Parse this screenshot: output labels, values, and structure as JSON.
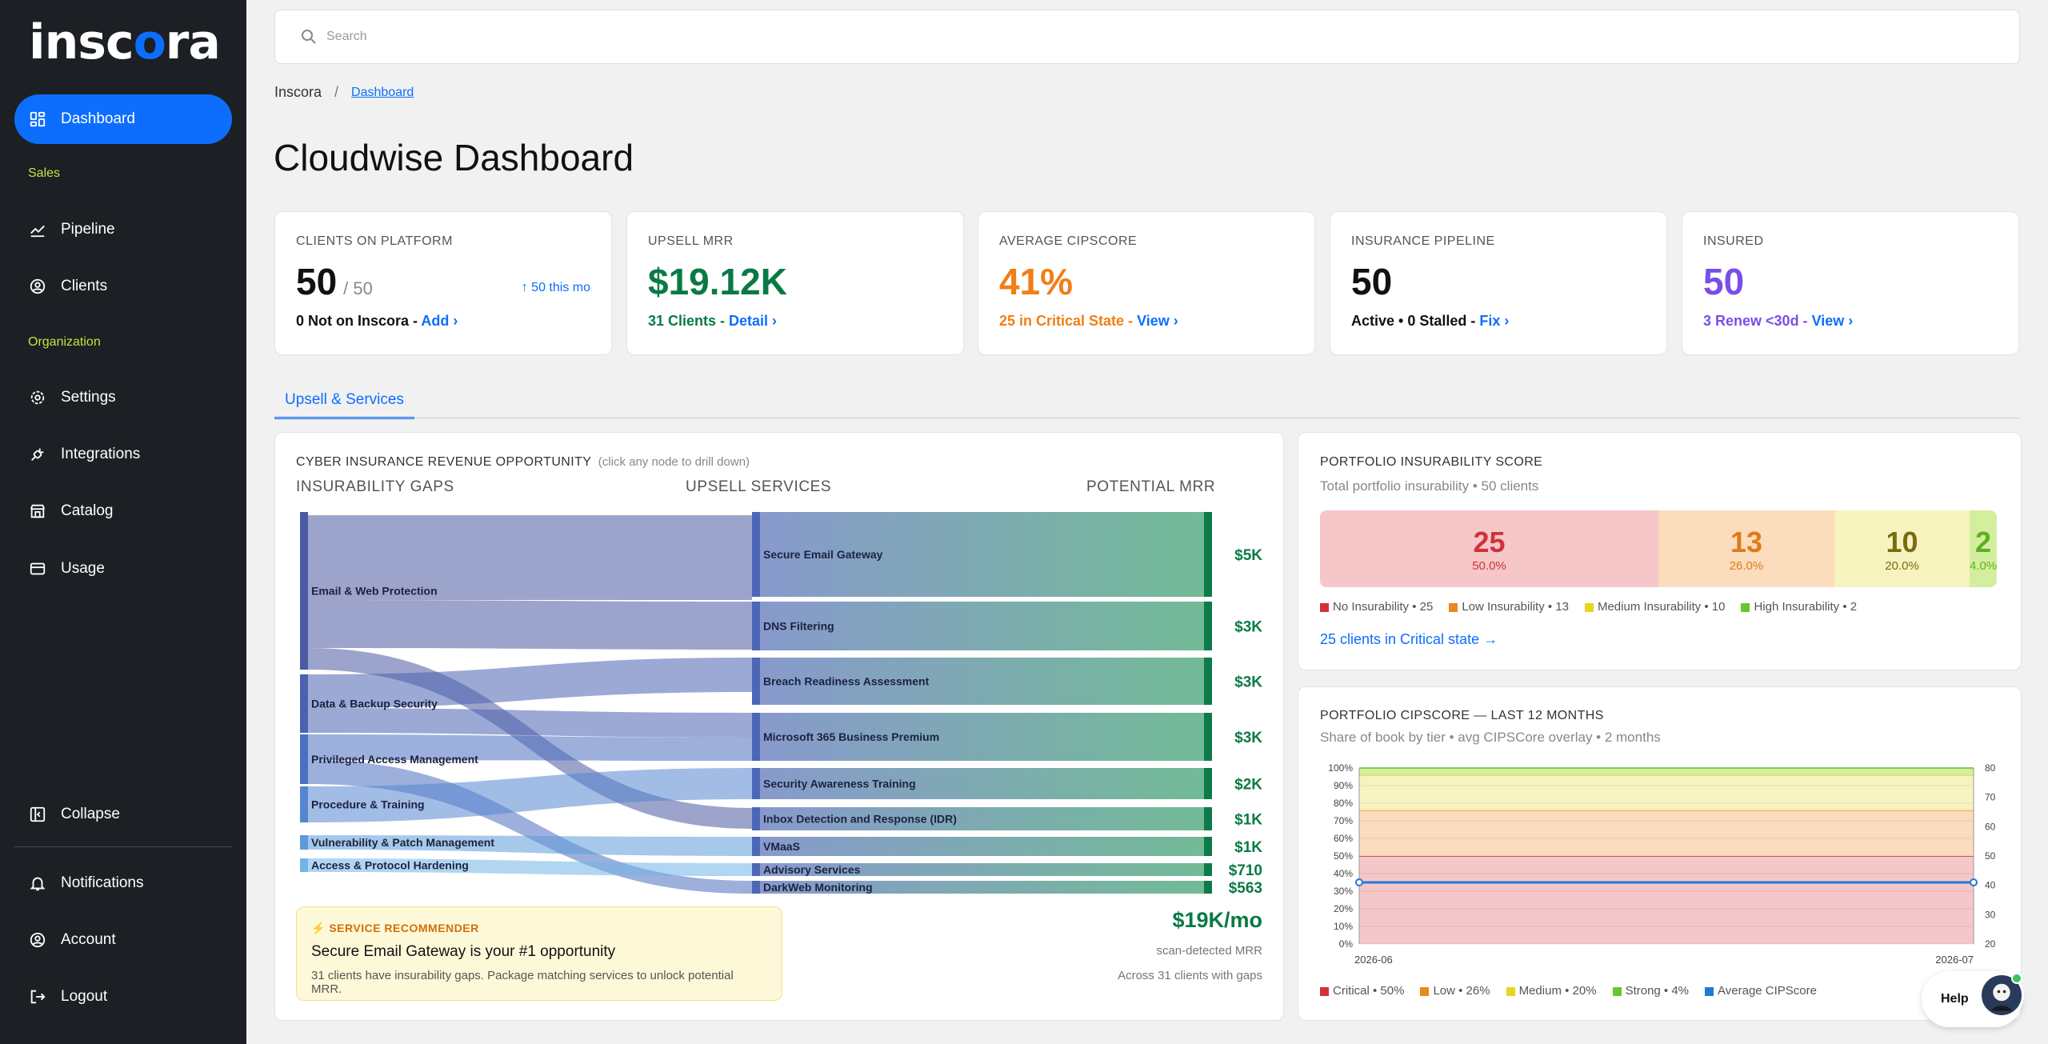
{
  "app": {
    "logo_text": "inscora",
    "logo_accent": "#0d6efd"
  },
  "sidebar": {
    "items": [
      {
        "label": "Dashboard",
        "icon": "grid-icon",
        "active": true
      },
      {
        "label": "Pipeline",
        "icon": "trend-icon"
      },
      {
        "label": "Clients",
        "icon": "user-icon"
      },
      {
        "label": "Settings",
        "icon": "gear-icon"
      },
      {
        "label": "Integrations",
        "icon": "plug-icon"
      },
      {
        "label": "Catalog",
        "icon": "store-icon"
      },
      {
        "label": "Usage",
        "icon": "card-icon"
      },
      {
        "label": "Collapse",
        "icon": "collapse-icon"
      },
      {
        "label": "Notifications",
        "icon": "bell-icon"
      },
      {
        "label": "Account",
        "icon": "account-icon"
      },
      {
        "label": "Logout",
        "icon": "logout-icon"
      }
    ],
    "section_sales": "Sales",
    "section_org": "Organization"
  },
  "search": {
    "placeholder": "Search"
  },
  "breadcrumb": {
    "root": "Inscora",
    "sep": "/",
    "current": "Dashboard"
  },
  "page_title": "Cloudwise Dashboard",
  "kpis": [
    {
      "label": "CLIENTS ON PLATFORM",
      "value": "50",
      "sub": "/ 50",
      "trend": "↑ 50 this mo",
      "foot": "0 Not on Inscora - ",
      "link": "Add ›",
      "color": "#111111",
      "foot_color": "#111111"
    },
    {
      "label": "UPSELL MRR",
      "value": "$19.12K",
      "foot": "31 Clients - ",
      "link": "Detail ›",
      "color": "#0a7a45",
      "foot_color": "#0a7a45"
    },
    {
      "label": "AVERAGE CIPSCORE",
      "value": "41%",
      "foot": "25 in Critical State - ",
      "link": "View ›",
      "color": "#f07f16",
      "foot_color": "#f07f16"
    },
    {
      "label": "INSURANCE PIPELINE",
      "value": "50",
      "foot": "Active • 0 Stalled - ",
      "link": "Fix ›",
      "color": "#111111",
      "foot_color": "#111111"
    },
    {
      "label": "INSURED",
      "value": "50",
      "foot": "3 Renew <30d - ",
      "link": "View ›",
      "color": "#7a4ee8",
      "foot_color": "#7a4ee8"
    }
  ],
  "tab": {
    "label": "Upsell & Services"
  },
  "sankey": {
    "title": "CYBER INSURANCE REVENUE OPPORTUNITY",
    "hint": "(click any node to drill down)",
    "col_gaps": "INSURABILITY GAPS",
    "col_services": "UPSELL SERVICES",
    "col_mrr": "POTENTIAL MRR",
    "gaps": [
      {
        "label": "Email & Web Protection",
        "color": "#4b5aa3"
      },
      {
        "label": "Data & Backup Security",
        "color": "#4a62b0"
      },
      {
        "label": "Privileged Access Management",
        "color": "#4d6fc0"
      },
      {
        "label": "Procedure & Training",
        "color": "#5586cf"
      },
      {
        "label": "Vulnerability & Patch Management",
        "color": "#5d9ad9"
      },
      {
        "label": "Access & Protocol Hardening",
        "color": "#71b4e6"
      }
    ],
    "services": [
      {
        "label": "Secure Email Gateway",
        "mrr": "$5K"
      },
      {
        "label": "DNS Filtering",
        "mrr": "$3K"
      },
      {
        "label": "Breach Readiness Assessment",
        "mrr": "$3K"
      },
      {
        "label": "Microsoft 365 Business Premium",
        "mrr": "$3K"
      },
      {
        "label": "Security Awareness Training",
        "mrr": "$2K"
      },
      {
        "label": "Inbox Detection and Response (IDR)",
        "mrr": "$1K"
      },
      {
        "label": "VMaaS",
        "mrr": "$1K"
      },
      {
        "label": "Advisory Services",
        "mrr": "$710"
      },
      {
        "label": "DarkWeb Monitoring",
        "mrr": "$563"
      }
    ],
    "recommender": {
      "heading": "⚡ SERVICE RECOMMENDER",
      "title": "Secure Email Gateway is your #1 opportunity",
      "desc": "31 clients have insurability gaps. Package matching services to unlock potential MRR."
    },
    "total": {
      "value": "$19K/mo",
      "line1": "scan-detected MRR",
      "line2": "Across 31 clients with gaps"
    }
  },
  "insurability": {
    "title": "PORTFOLIO INSURABILITY SCORE",
    "sub": "Total portfolio insurability • 50 clients",
    "segments": [
      {
        "count": "25",
        "pct": "50.0%",
        "bg": "#f5c7c9",
        "fg": "#d0323a"
      },
      {
        "count": "13",
        "pct": "26.0%",
        "bg": "#fbdcbd",
        "fg": "#e07a1a"
      },
      {
        "count": "10",
        "pct": "20.0%",
        "bg": "#f6f3bf",
        "fg": "#7a6b10"
      },
      {
        "count": "2",
        "pct": "4.0%",
        "bg": "#d3ef9e",
        "fg": "#5cb020"
      }
    ],
    "legend": [
      {
        "label": "No Insurability • 25",
        "color": "#d0323a"
      },
      {
        "label": "Low Insurability • 13",
        "color": "#e88a1e"
      },
      {
        "label": "Medium Insurability • 10",
        "color": "#e5d522"
      },
      {
        "label": "High Insurability • 2",
        "color": "#6cc52e"
      }
    ],
    "link": "25 clients in Critical state →"
  },
  "cipscore": {
    "title": "PORTFOLIO CIPSCORE — LAST 12 MONTHS",
    "sub": "Share of book by tier • avg CIPSCore overlay • 2 months",
    "legend": [
      {
        "label": "Critical • 50%",
        "color": "#d0323a"
      },
      {
        "label": "Low • 26%",
        "color": "#e88a1e"
      },
      {
        "label": "Medium • 20%",
        "color": "#e5d522"
      },
      {
        "label": "Strong • 4%",
        "color": "#6cc52e"
      },
      {
        "label": "Average CIPScore",
        "color": "#1f7ad6"
      }
    ]
  },
  "chart_data": {
    "type": "area",
    "x": [
      "2026-06",
      "2026-07"
    ],
    "series": [
      {
        "name": "Critical",
        "values": [
          50,
          50
        ]
      },
      {
        "name": "Low",
        "values": [
          26,
          26
        ]
      },
      {
        "name": "Medium",
        "values": [
          20,
          20
        ]
      },
      {
        "name": "Strong",
        "values": [
          4,
          4
        ]
      },
      {
        "name": "Average CIPScore",
        "values": [
          41,
          41
        ],
        "axis": "right"
      }
    ],
    "ylim": [
      0,
      100
    ],
    "y_ticks": [
      "100%",
      "90%",
      "80%",
      "70%",
      "60%",
      "50%",
      "40%",
      "30%",
      "20%",
      "10%",
      "0%"
    ],
    "y2lim": [
      20,
      80
    ],
    "y2_ticks": [
      "80",
      "70",
      "60",
      "50",
      "40",
      "30",
      "20"
    ],
    "stacked": true,
    "grid": true
  },
  "help": {
    "label": "Help"
  }
}
